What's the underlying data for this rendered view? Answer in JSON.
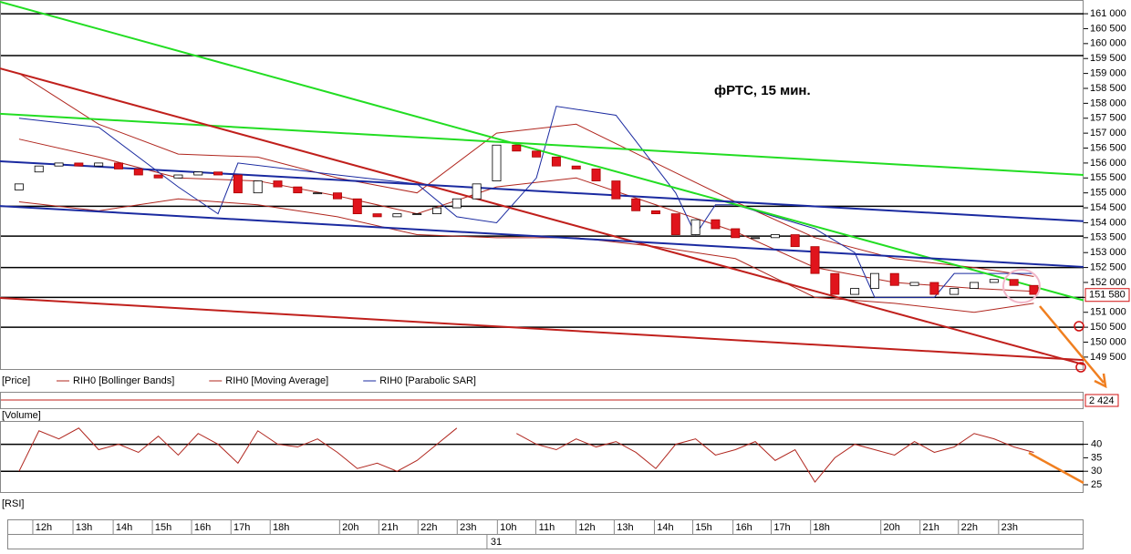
{
  "chart_data": {
    "type": "candlestick",
    "title": "фРТС,   15 мин.",
    "price_label": "[Price]",
    "xlim": [
      -0.5,
      53.5
    ],
    "ylim": [
      149100,
      161460
    ],
    "yticks": [
      {
        "value": 161000,
        "label": "161 000"
      },
      {
        "value": 160500,
        "label": "160 500"
      },
      {
        "value": 160000,
        "label": "160 000"
      },
      {
        "value": 159500,
        "label": "159 500"
      },
      {
        "value": 159000,
        "label": "159 000"
      },
      {
        "value": 158500,
        "label": "158 500"
      },
      {
        "value": 158000,
        "label": "158 000"
      },
      {
        "value": 157500,
        "label": "157 500"
      },
      {
        "value": 157000,
        "label": "157 000"
      },
      {
        "value": 156500,
        "label": "156 500"
      },
      {
        "value": 156000,
        "label": "156 000"
      },
      {
        "value": 155500,
        "label": "155 500"
      },
      {
        "value": 155000,
        "label": "155 000"
      },
      {
        "value": 154500,
        "label": "154 500"
      },
      {
        "value": 154000,
        "label": "154 000"
      },
      {
        "value": 153500,
        "label": "153 500"
      },
      {
        "value": 153000,
        "label": "153 000"
      },
      {
        "value": 152500,
        "label": "152 500"
      },
      {
        "value": 152000,
        "label": "152 000"
      },
      {
        "value": 151500,
        "label": "151 500"
      },
      {
        "value": 151000,
        "label": "151 000"
      },
      {
        "value": 150500,
        "label": "150 500"
      },
      {
        "value": 150000,
        "label": "150 000"
      },
      {
        "value": 149500,
        "label": "149 500"
      }
    ],
    "hlines": [
      161000,
      159600,
      154550,
      153550,
      152500,
      151500,
      150500
    ],
    "trendlines": [
      {
        "color": "#22dd22",
        "start": 161400,
        "end": 151400
      },
      {
        "color": "#22dd22",
        "start": 157650,
        "end": 155600
      },
      {
        "color": "#c0201c",
        "start": 159170,
        "end": 149250
      },
      {
        "color": "#c0201c",
        "start": 151480,
        "end": 149400
      },
      {
        "color": "#1a2aa0",
        "start": 156060,
        "end": 154050
      },
      {
        "color": "#1a2aa0",
        "start": 154560,
        "end": 152520
      }
    ],
    "up_color": "#ffffff",
    "down_color": "#e0141c",
    "open": [
      155100,
      155700,
      155900,
      156000,
      155900,
      156000,
      155800,
      155600,
      155500,
      155600,
      155700,
      155600,
      155000,
      155400,
      155200,
      155000,
      155000,
      154800,
      154300,
      154200,
      154300,
      154300,
      154500,
      154800,
      155400,
      156600,
      156400,
      156200,
      155900,
      155800,
      155400,
      154800,
      154400,
      154300,
      153600,
      154100,
      153800,
      153500,
      153500,
      153600,
      153200,
      152300,
      151600,
      151800,
      152300,
      151900,
      152000,
      151600,
      151800,
      152000,
      152100,
      151900
    ],
    "close": [
      155300,
      155900,
      156000,
      155900,
      156000,
      155800,
      155600,
      155500,
      155600,
      155700,
      155600,
      155000,
      155400,
      155200,
      155000,
      155000,
      154800,
      154300,
      154200,
      154300,
      154300,
      154500,
      154800,
      155300,
      156600,
      156400,
      156200,
      155900,
      155800,
      155400,
      154800,
      154400,
      154300,
      153600,
      154100,
      153800,
      153500,
      153500,
      153600,
      153200,
      152300,
      151600,
      151800,
      152300,
      151900,
      152000,
      151600,
      151800,
      152000,
      152100,
      151900,
      151600
    ],
    "indicators": [
      {
        "name": "RIH0 [Bollinger Bands]",
        "color": "#b0261e",
        "x": [
          0,
          4,
          8,
          12,
          16,
          20,
          24,
          28,
          32,
          36,
          40,
          44,
          48,
          51
        ],
        "values": [
          159000,
          157300,
          156300,
          156200,
          155500,
          155000,
          157000,
          157300,
          156000,
          154700,
          153500,
          152800,
          152500,
          152200
        ]
      },
      {
        "name": "RIH0 [Moving Average]",
        "color": "#b0261e",
        "x": [
          0,
          4,
          8,
          12,
          16,
          20,
          24,
          28,
          32,
          36,
          40,
          44,
          48,
          51
        ],
        "values": [
          156800,
          156200,
          155500,
          155400,
          154900,
          154300,
          155200,
          155500,
          154600,
          153700,
          152500,
          152000,
          151800,
          151700
        ]
      },
      {
        "name": "RIH0 [Parabolic SAR]",
        "color": "#1a2aa0",
        "x": [
          0,
          4,
          8,
          10,
          11,
          16,
          20,
          22,
          24,
          26,
          27,
          30,
          33,
          34,
          35,
          36,
          40,
          42,
          43,
          46,
          47,
          51
        ],
        "values": [
          157500,
          157200,
          155200,
          154300,
          156000,
          155600,
          155300,
          154200,
          154000,
          155500,
          157900,
          157600,
          155000,
          153600,
          154600,
          154600,
          153800,
          153000,
          151500,
          151500,
          152300,
          152300
        ]
      }
    ],
    "lower_band": {
      "color": "#b0261e",
      "x": [
        0,
        4,
        8,
        12,
        16,
        20,
        24,
        28,
        32,
        36,
        40,
        44,
        48,
        51
      ],
      "values": [
        154700,
        154400,
        154800,
        154600,
        154200,
        153600,
        153500,
        153500,
        153200,
        152800,
        151500,
        151300,
        151000,
        151300
      ]
    },
    "last_price": {
      "value": 151580,
      "label": "151 580"
    },
    "volume": {
      "label": "[Volume]",
      "value": {
        "value": 2424,
        "label": "2 424"
      }
    },
    "rsi": {
      "label": "[RSI]",
      "ylim": [
        22.3,
        48.3
      ],
      "yticks": [
        40,
        35,
        30,
        25
      ],
      "levels": [
        40,
        30
      ],
      "values": [
        30,
        45,
        42,
        46,
        38,
        40,
        37,
        43,
        36,
        44,
        40,
        33,
        45,
        40,
        39,
        42,
        37,
        31,
        33,
        30,
        34,
        40,
        46,
        null,
        null,
        44,
        40,
        38,
        42,
        39,
        41,
        37,
        31,
        40,
        42,
        36,
        38,
        41,
        34,
        38,
        26,
        35,
        40,
        38,
        36,
        41,
        37,
        39,
        44,
        42,
        39,
        37
      ]
    },
    "time_labels": {
      "x": [
        1.24,
        3.26,
        5.28,
        7.25,
        9.22,
        11.2,
        13.17,
        16.66,
        18.63,
        20.6,
        22.57,
        24.59,
        26.52,
        28.54,
        30.46,
        32.48,
        34.41,
        36.43,
        38.35,
        40.33,
        43.86,
        45.83,
        47.76,
        49.78
      ],
      "labels": [
        "12h",
        "13h",
        "14h",
        "15h",
        "16h",
        "17h",
        "18h",
        "20h",
        "21h",
        "22h",
        "23h",
        "10h",
        "11h",
        "12h",
        "13h",
        "14h",
        "15h",
        "16h",
        "17h",
        "18h",
        "20h",
        "21h",
        "22h",
        "23h"
      ]
    },
    "date_label": {
      "x": 23.7,
      "label": "31"
    }
  }
}
